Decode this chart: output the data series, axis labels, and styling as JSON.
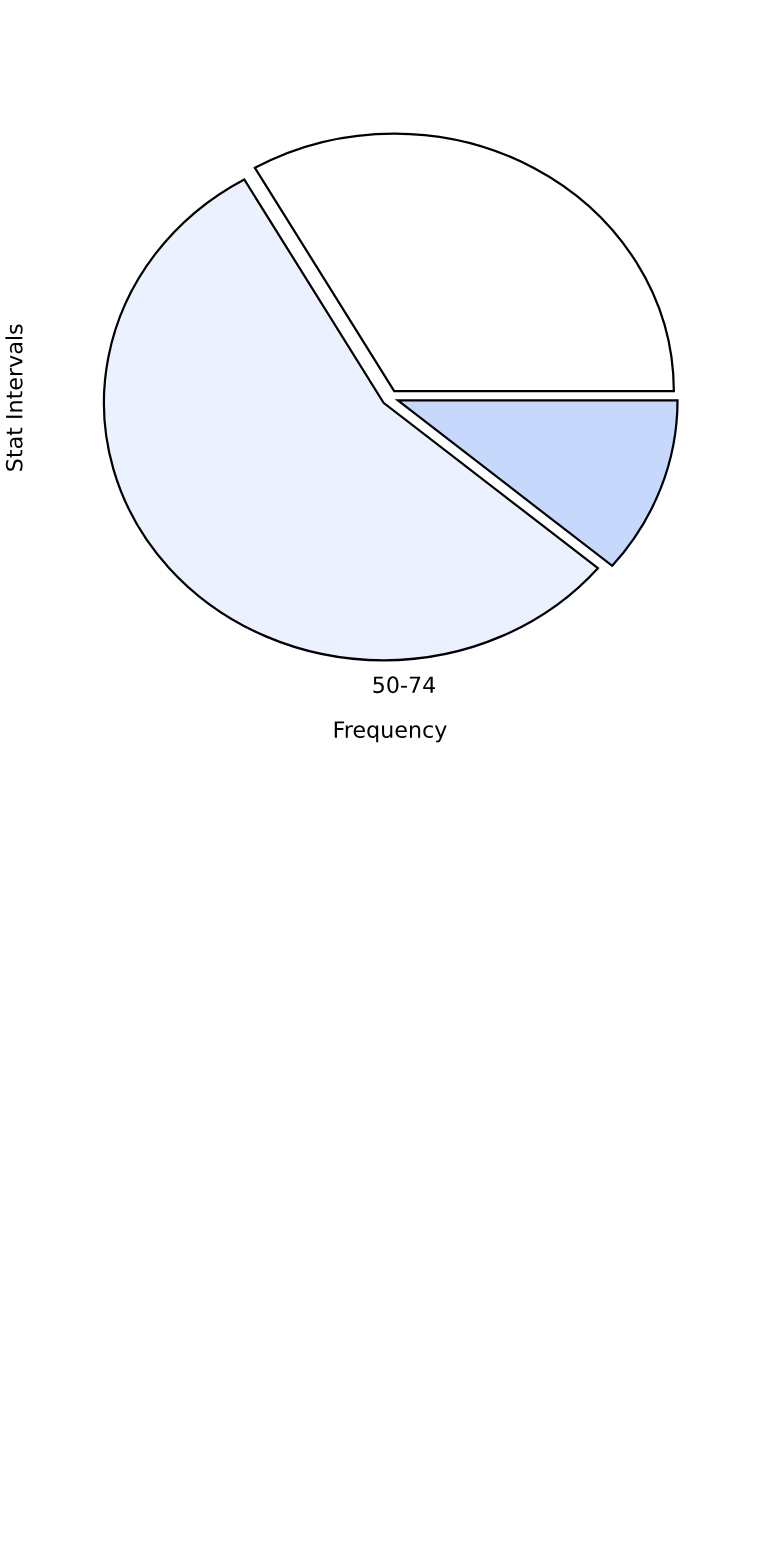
{
  "chart_data": {
    "type": "pie",
    "xlabel": "Frequency",
    "ylabel": "Stat Intervals",
    "categories": [
      null,
      "50-74",
      null
    ],
    "values": [
      33.3,
      55.6,
      11.1
    ],
    "colors": [
      "#ffffff",
      "#ebf1fe",
      "#c6d9fd"
    ]
  }
}
